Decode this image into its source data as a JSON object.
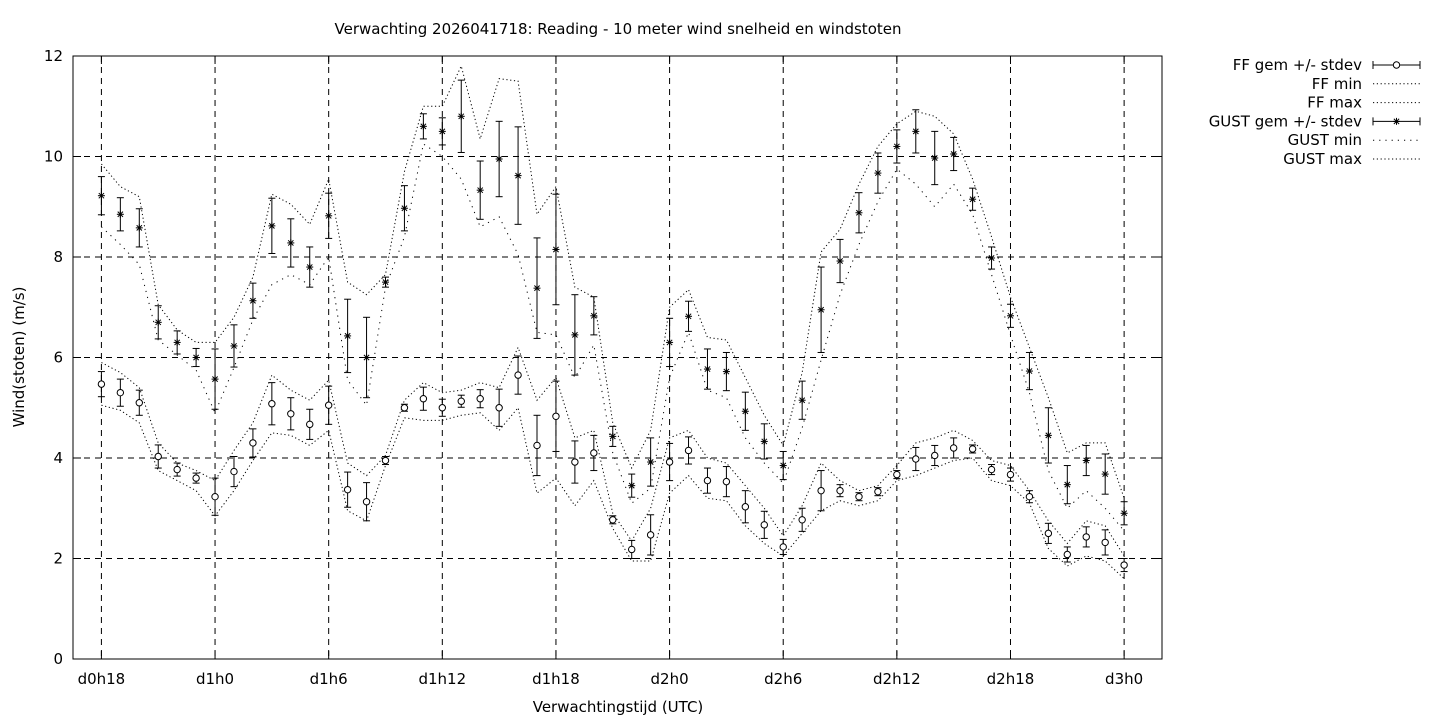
{
  "chart_data": {
    "type": "line",
    "title": "Verwachting 2026041718: Reading - 10 meter wind snelheid en windstoten",
    "xlabel": "Verwachtingstijd (UTC)",
    "ylabel": "Wind(stoten) (m/s)",
    "x_ticks": [
      "d0h18",
      "d1h0",
      "d1h6",
      "d1h12",
      "d1h18",
      "d2h0",
      "d2h6",
      "d2h12",
      "d2h18",
      "d3h0"
    ],
    "x_tick_hours": [
      0,
      6,
      12,
      18,
      24,
      30,
      36,
      42,
      48,
      54
    ],
    "y_ticks": [
      0,
      2,
      4,
      6,
      8,
      10,
      12
    ],
    "xlim": [
      -1.5,
      56
    ],
    "ylim": [
      0,
      12
    ],
    "grid": true,
    "legend_position": "outside-top-right",
    "x_hours": [
      0,
      1,
      2,
      3,
      4,
      5,
      6,
      7,
      8,
      9,
      10,
      11,
      12,
      13,
      14,
      15,
      16,
      17,
      18,
      19,
      20,
      21,
      22,
      23,
      24,
      25,
      26,
      27,
      28,
      29,
      30,
      31,
      32,
      33,
      34,
      35,
      36,
      37,
      38,
      39,
      40,
      41,
      42,
      43,
      44,
      45,
      46,
      47,
      48,
      49,
      50,
      51,
      52,
      53,
      54
    ],
    "series": [
      {
        "name": "FF gem +/- stdev",
        "style": "errorbar-circle",
        "values": [
          5.47,
          5.3,
          5.1,
          4.03,
          3.77,
          3.6,
          3.23,
          3.73,
          4.3,
          5.08,
          4.88,
          4.67,
          5.05,
          3.37,
          3.13,
          3.95,
          5.0,
          5.18,
          5.0,
          5.13,
          5.18,
          5.0,
          5.65,
          4.25,
          4.83,
          3.92,
          4.1,
          2.77,
          2.18,
          2.47,
          3.92,
          4.15,
          3.55,
          3.53,
          3.03,
          2.67,
          2.23,
          2.77,
          3.35,
          3.35,
          3.23,
          3.33,
          3.67,
          3.98,
          4.05,
          4.2,
          4.18,
          3.77,
          3.67,
          3.23,
          2.5,
          2.08,
          2.43,
          2.32,
          1.87
        ],
        "stdev": [
          0.25,
          0.27,
          0.25,
          0.23,
          0.13,
          0.1,
          0.37,
          0.3,
          0.28,
          0.42,
          0.32,
          0.3,
          0.38,
          0.35,
          0.38,
          0.08,
          0.07,
          0.23,
          0.17,
          0.12,
          0.18,
          0.37,
          0.38,
          0.6,
          0.7,
          0.42,
          0.35,
          0.08,
          0.18,
          0.4,
          0.37,
          0.27,
          0.25,
          0.3,
          0.32,
          0.27,
          0.15,
          0.23,
          0.4,
          0.12,
          0.08,
          0.08,
          0.08,
          0.23,
          0.2,
          0.2,
          0.08,
          0.1,
          0.13,
          0.12,
          0.2,
          0.15,
          0.2,
          0.25,
          0.13
        ]
      },
      {
        "name": "FF min",
        "style": "dotted",
        "values": [
          5.05,
          4.95,
          4.7,
          3.75,
          3.55,
          3.35,
          2.85,
          3.35,
          3.95,
          4.5,
          4.45,
          4.25,
          4.55,
          2.95,
          2.75,
          3.85,
          4.8,
          4.75,
          4.75,
          4.85,
          4.9,
          4.55,
          5.0,
          3.3,
          3.6,
          3.05,
          3.55,
          2.6,
          1.95,
          1.95,
          3.3,
          3.65,
          3.2,
          3.15,
          2.65,
          2.3,
          2.05,
          2.5,
          2.95,
          3.15,
          3.05,
          3.15,
          3.55,
          3.65,
          3.8,
          3.95,
          4.0,
          3.55,
          3.45,
          3.1,
          2.2,
          1.85,
          2.05,
          1.95,
          1.6
        ]
      },
      {
        "name": "FF max",
        "style": "dotted",
        "values": [
          5.9,
          5.7,
          5.4,
          4.3,
          3.9,
          3.75,
          3.55,
          4.15,
          4.7,
          5.65,
          5.35,
          5.15,
          5.55,
          3.9,
          3.65,
          4.05,
          5.15,
          5.5,
          5.3,
          5.35,
          5.5,
          5.4,
          6.2,
          5.15,
          5.6,
          4.4,
          4.55,
          2.9,
          2.35,
          3.0,
          4.4,
          4.55,
          4.0,
          3.9,
          3.45,
          3.0,
          2.45,
          3.05,
          3.9,
          3.55,
          3.35,
          3.45,
          3.85,
          4.3,
          4.4,
          4.55,
          4.35,
          3.95,
          3.85,
          3.35,
          2.75,
          2.3,
          2.75,
          2.65,
          2.05
        ]
      },
      {
        "name": "GUST gem +/- stdev",
        "style": "errorbar-star",
        "values": [
          9.22,
          8.85,
          8.58,
          6.7,
          6.3,
          6.0,
          5.57,
          6.23,
          7.13,
          8.62,
          8.28,
          7.8,
          8.82,
          6.43,
          6.0,
          7.5,
          8.97,
          10.6,
          10.5,
          10.8,
          9.33,
          9.95,
          9.62,
          7.38,
          8.15,
          6.45,
          6.83,
          4.43,
          3.45,
          3.92,
          6.3,
          6.82,
          5.77,
          5.72,
          4.93,
          4.33,
          3.85,
          5.15,
          6.95,
          7.92,
          8.88,
          9.67,
          10.2,
          10.5,
          9.97,
          10.05,
          9.15,
          7.98,
          6.83,
          5.73,
          4.45,
          3.47,
          3.95,
          3.68,
          2.9
        ],
        "stdev": [
          0.38,
          0.33,
          0.38,
          0.33,
          0.23,
          0.18,
          0.6,
          0.42,
          0.35,
          0.55,
          0.48,
          0.4,
          0.45,
          0.73,
          0.8,
          0.1,
          0.45,
          0.25,
          0.27,
          0.72,
          0.58,
          0.75,
          0.97,
          1.0,
          1.1,
          0.8,
          0.38,
          0.2,
          0.23,
          0.48,
          0.48,
          0.3,
          0.4,
          0.38,
          0.38,
          0.35,
          0.28,
          0.38,
          0.85,
          0.43,
          0.4,
          0.4,
          0.33,
          0.43,
          0.53,
          0.33,
          0.22,
          0.22,
          0.23,
          0.37,
          0.55,
          0.38,
          0.3,
          0.4,
          0.23
        ]
      },
      {
        "name": "GUST min",
        "style": "dotted-sparse",
        "values": [
          8.6,
          8.25,
          7.85,
          6.35,
          6.05,
          5.75,
          4.9,
          5.8,
          6.75,
          7.45,
          7.65,
          7.45,
          8.0,
          5.55,
          5.05,
          7.4,
          8.4,
          10.25,
          10.0,
          9.55,
          8.6,
          8.8,
          8.05,
          6.5,
          6.45,
          5.6,
          6.25,
          4.1,
          3.1,
          3.4,
          5.6,
          6.5,
          5.35,
          5.2,
          4.4,
          3.9,
          3.5,
          4.6,
          5.95,
          7.25,
          8.25,
          9.1,
          9.75,
          9.45,
          9.0,
          9.45,
          8.85,
          7.65,
          6.45,
          5.3,
          3.75,
          3.0,
          3.35,
          3.0,
          2.55
        ]
      },
      {
        "name": "GUST max",
        "style": "dotted",
        "values": [
          9.85,
          9.4,
          9.2,
          7.05,
          6.55,
          6.3,
          6.3,
          6.8,
          7.6,
          9.25,
          9.05,
          8.65,
          9.55,
          7.5,
          7.25,
          7.65,
          9.7,
          11.0,
          11.0,
          11.8,
          10.35,
          11.55,
          11.5,
          8.85,
          9.4,
          7.4,
          7.2,
          4.7,
          3.8,
          4.55,
          7.0,
          7.35,
          6.4,
          6.35,
          5.6,
          4.85,
          4.25,
          5.7,
          8.1,
          8.55,
          9.45,
          10.2,
          10.65,
          10.9,
          10.8,
          10.45,
          9.55,
          8.4,
          7.2,
          6.2,
          5.2,
          4.1,
          4.3,
          4.3,
          3.2
        ]
      }
    ]
  }
}
